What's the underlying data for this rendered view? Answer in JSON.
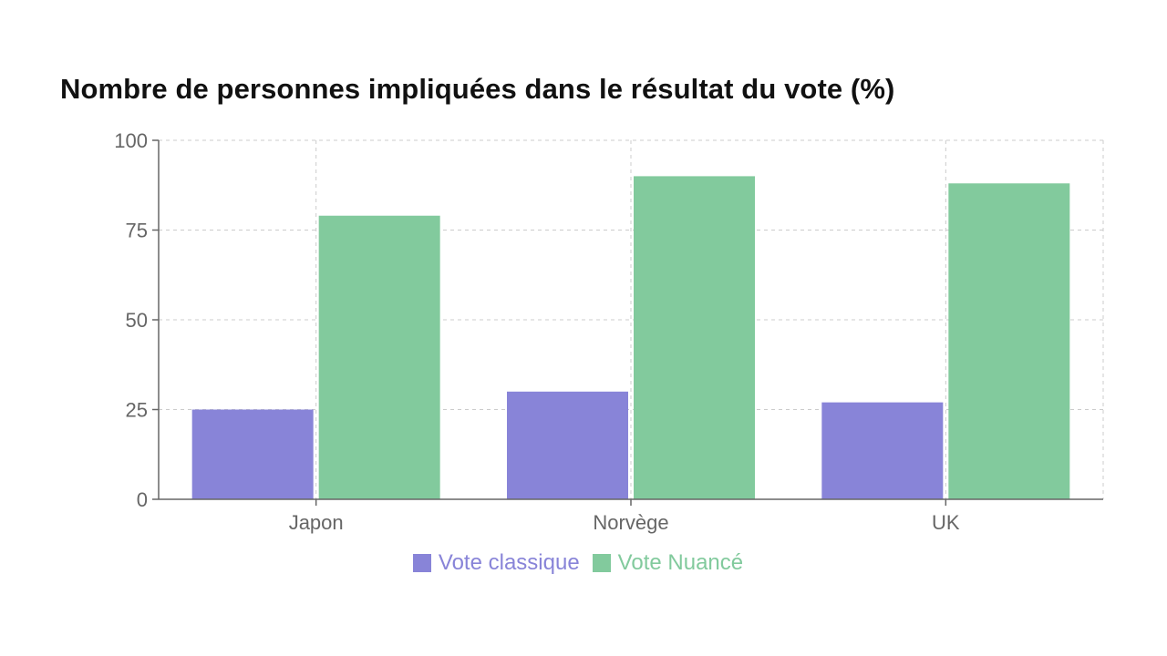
{
  "chart_data": {
    "type": "bar",
    "title": "Nombre de personnes impliquées dans le résultat du vote (%)",
    "categories": [
      "Japon",
      "Norvège",
      "UK"
    ],
    "series": [
      {
        "name": "Vote classique",
        "values": [
          25,
          30,
          27
        ],
        "color": "#8884d8"
      },
      {
        "name": "Vote Nuancé",
        "values": [
          79,
          90,
          88
        ],
        "color": "#82ca9d"
      }
    ],
    "ylim": [
      0,
      100
    ],
    "yticks": [
      0,
      25,
      50,
      75,
      100
    ],
    "xlabel": "",
    "ylabel": "",
    "grid": true,
    "legend_position": "bottom"
  }
}
